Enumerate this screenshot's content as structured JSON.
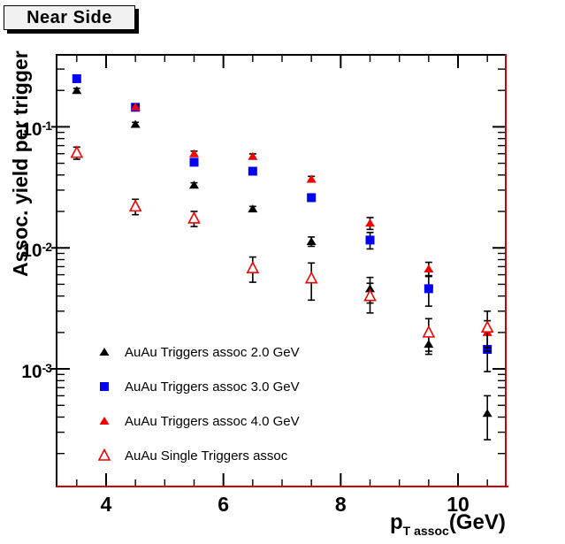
{
  "title": "Near Side",
  "colors": {
    "marker_black": "#000000",
    "marker_blue": "#0000f5",
    "marker_red": "#f50000",
    "axis_red": "#cc0000",
    "frame_black": "#000000",
    "title_box_fill": "#f1f1f1"
  },
  "chart_data": {
    "type": "scatter",
    "title": "Near Side",
    "ylabel": "Assoc. yield per trigger",
    "xlabel": "p_{T assoc} (GeV)",
    "xlabel_parts": {
      "main": "p",
      "sub": "T assoc",
      "unit": "(GeV)"
    },
    "x_axis": {
      "min": 3.141,
      "max": 10.829,
      "major_ticks": [
        4,
        6,
        8,
        10
      ],
      "major_labels": [
        "4",
        "6",
        "8",
        "10"
      ],
      "minor_ticks": [
        3.5,
        4.5,
        5,
        5.5,
        6.5,
        7,
        7.5,
        8.5,
        9,
        9.5,
        10.5
      ]
    },
    "y_axis": {
      "scale": "log",
      "min": 0.000105,
      "max": 0.4,
      "major_ticks": [
        0.1,
        0.01,
        0.001
      ],
      "major_labels": [
        {
          "base": "10",
          "exp": "-1",
          "value": 0.1
        },
        {
          "base": "10",
          "exp": "-2",
          "value": 0.01
        },
        {
          "base": "10",
          "exp": "-3",
          "value": 0.001
        }
      ]
    },
    "series": [
      {
        "name": "AuAu Triggers assoc 2.0 GeV",
        "marker": "triangle-filled",
        "color": "#000000",
        "x": [
          3.5,
          4.5,
          5.5,
          6.5,
          7.5,
          8.5,
          9.5,
          10.5
        ],
        "y": [
          0.2,
          0.105,
          0.033,
          0.021,
          0.0113,
          0.0046,
          0.0016,
          0.00043
        ],
        "ey": [
          0.008,
          0.004,
          0.0015,
          0.001,
          0.001,
          0.0011,
          0.00028,
          0.00017
        ]
      },
      {
        "name": "AuAu Triggers assoc 3.0 GeV",
        "marker": "square-filled",
        "color": "#0000f5",
        "x": [
          3.5,
          4.5,
          5.5,
          6.5,
          7.5,
          8.5,
          9.5,
          10.5
        ],
        "y": [
          0.25,
          0.145,
          0.051,
          0.043,
          0.026,
          0.0116,
          0.0046,
          0.00145
        ],
        "ey": [
          0.012,
          0.006,
          0.0025,
          0.002,
          0.0016,
          0.0018,
          0.0013,
          0.0005
        ]
      },
      {
        "name": "AuAu Triggers assoc 4.0 GeV",
        "marker": "triangle-filled",
        "color": "#f50000",
        "x": [
          4.5,
          5.5,
          6.5,
          7.5,
          8.5,
          9.5,
          10.5
        ],
        "y": [
          0.146,
          0.06,
          0.057,
          0.037,
          0.016,
          0.0067,
          0.002
        ],
        "ey": [
          0.006,
          0.003,
          0.0028,
          0.002,
          0.0018,
          0.0009,
          0.0005
        ]
      },
      {
        "name": "AuAu Single Triggers assoc",
        "marker": "triangle-open",
        "color": "#f50000",
        "x": [
          3.5,
          4.5,
          5.5,
          6.5,
          7.5,
          8.5,
          9.5,
          10.5
        ],
        "y": [
          0.061,
          0.022,
          0.0175,
          0.0068,
          0.0056,
          0.004,
          0.002,
          0.0022
        ],
        "ey": [
          0.007,
          0.0032,
          0.0025,
          0.0016,
          0.0019,
          0.0011,
          0.0006,
          0.0008
        ]
      }
    ],
    "legend_position": "bottom-left-inside"
  }
}
